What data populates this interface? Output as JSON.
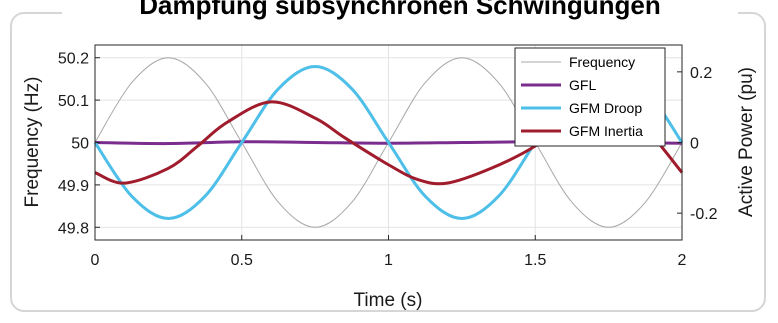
{
  "chart_data": {
    "type": "line",
    "title": "Dämpfung subsynchronen Schwingungen",
    "xlabel": "Time (s)",
    "ylabel_left": "Frequency (Hz)",
    "ylabel_right": "Active Power (pu)",
    "xlim": [
      0,
      2
    ],
    "ylim_left": [
      49.77,
      50.23
    ],
    "ylim_right": [
      -0.276,
      0.276
    ],
    "x_ticks": [
      "0",
      "0.5",
      "1",
      "1.5",
      "2"
    ],
    "x_tick_values": [
      0,
      0.5,
      1,
      1.5,
      2
    ],
    "y_left_ticks": [
      "49.8",
      "49.9",
      "50",
      "50.1",
      "50.2"
    ],
    "y_left_tick_values": [
      49.8,
      49.9,
      50.0,
      50.1,
      50.2
    ],
    "y_right_ticks": [
      "-0.2",
      "0",
      "0.2"
    ],
    "y_right_tick_values": [
      -0.2,
      0,
      0.2
    ],
    "grid": true,
    "legend_position": "top-right",
    "series": [
      {
        "name": "Frequency",
        "axis": "left",
        "color": "#a8a8a8",
        "x": [
          0,
          0.125,
          0.25,
          0.375,
          0.5,
          0.625,
          0.75,
          0.875,
          1.0,
          1.125,
          1.25,
          1.375,
          1.5,
          1.625,
          1.75,
          1.875,
          2.0
        ],
        "y": [
          50.0,
          50.141,
          50.2,
          50.141,
          50.0,
          49.859,
          49.8,
          49.859,
          50.0,
          50.141,
          50.2,
          50.141,
          50.0,
          49.859,
          49.8,
          49.859,
          50.0
        ]
      },
      {
        "name": "GFL",
        "axis": "right",
        "color": "#7b2d8e",
        "x": [
          0,
          0.25,
          0.5,
          0.75,
          1.0,
          1.25,
          1.5,
          1.75,
          2.0
        ],
        "y": [
          0.0,
          -0.003,
          0.002,
          0.0,
          -0.002,
          0.0,
          0.002,
          0.0,
          -0.002
        ]
      },
      {
        "name": "GFM Droop",
        "axis": "right",
        "color": "#4dbfe8",
        "x": [
          0,
          0.125,
          0.25,
          0.375,
          0.5,
          0.625,
          0.75,
          0.875,
          1.0,
          1.125,
          1.25,
          1.375,
          1.5,
          1.625,
          1.75,
          1.875,
          2.0
        ],
        "y": [
          0.0,
          -0.152,
          -0.215,
          -0.152,
          0.0,
          0.152,
          0.215,
          0.152,
          0.0,
          -0.152,
          -0.215,
          -0.152,
          0.0,
          0.152,
          0.215,
          0.152,
          0.0
        ]
      },
      {
        "name": "GFM Inertia",
        "axis": "right",
        "color": "#a01c2c",
        "x": [
          0,
          0.1,
          0.25,
          0.35,
          0.45,
          0.6,
          0.75,
          0.85,
          1.0,
          1.1,
          1.2,
          1.35,
          1.5,
          1.6,
          1.7,
          1.85,
          2.0
        ],
        "y": [
          -0.085,
          -0.115,
          -0.073,
          -0.01,
          0.057,
          0.115,
          0.069,
          0.014,
          -0.063,
          -0.105,
          -0.115,
          -0.073,
          -0.01,
          0.057,
          0.115,
          0.06,
          -0.085
        ]
      }
    ]
  }
}
